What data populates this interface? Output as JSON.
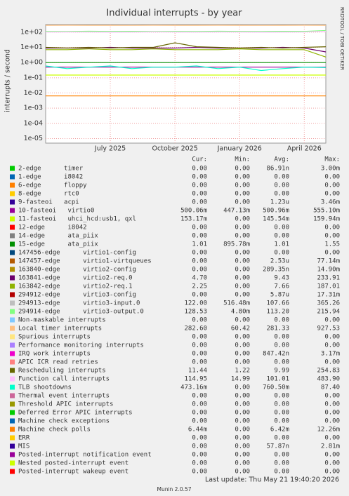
{
  "chart_data": {
    "type": "line",
    "title": "Individual interrupts - by year",
    "y_label": "interrupts / second",
    "side_text": "RRDTOOL / TOBI OETIKER",
    "log_scale": true,
    "grid": true,
    "x": [
      "2025-04",
      "2025-05",
      "2025-06",
      "2025-07",
      "2025-08",
      "2025-09",
      "2025-10",
      "2025-11",
      "2025-12",
      "2026-01",
      "2026-02",
      "2026-03",
      "2026-04",
      "2026-05"
    ],
    "xlim": [
      "2025-04",
      "2026-05"
    ],
    "xticks": [
      {
        "value": "2025-07",
        "label": "July 2025"
      },
      {
        "value": "2025-10",
        "label": "October 2025"
      },
      {
        "value": "2026-01",
        "label": "January 2026"
      },
      {
        "value": "2026-04",
        "label": "April 2026"
      }
    ],
    "ylim": [
      5e-06,
      316
    ],
    "yticks": [
      {
        "value": 1e-05,
        "label": "1e-05"
      },
      {
        "value": 0.0001,
        "label": "1e-04"
      },
      {
        "value": 0.001,
        "label": "1e-03"
      },
      {
        "value": 0.01,
        "label": "1e-02"
      },
      {
        "value": 0.1,
        "label": "1e-01"
      },
      {
        "value": 1,
        "label": "1e+00"
      },
      {
        "value": 10,
        "label": "1e+01"
      },
      {
        "value": 100,
        "label": "1e+02"
      }
    ],
    "headers": [
      "Cur:",
      "Min:",
      "Avg:",
      "Max:"
    ],
    "series": [
      {
        "name": "2-edge      timer",
        "color": "#00cc00",
        "stats": [
          "0.00",
          "0.00",
          "86.91n",
          "3.00m"
        ]
      },
      {
        "name": "1-edge      i8042",
        "color": "#0066b3",
        "stats": [
          "0.00",
          "0.00",
          "0.00",
          "0.00"
        ]
      },
      {
        "name": "6-edge      floppy",
        "color": "#ff8000",
        "stats": [
          "0.00",
          "0.00",
          "0.00",
          "0.00"
        ]
      },
      {
        "name": "8-edge      rtc0",
        "color": "#ffcc00",
        "stats": [
          "0.00",
          "0.00",
          "0.00",
          "0.00"
        ]
      },
      {
        "name": "9-fasteoi   acpi",
        "color": "#330099",
        "stats": [
          "0.00",
          "0.00",
          "1.23u",
          "3.46m"
        ]
      },
      {
        "name": "10-fasteoi   virtio0",
        "color": "#990099",
        "stats": [
          "500.06m",
          "447.13m",
          "500.96m",
          "555.10m"
        ],
        "values": [
          0.5,
          0.5,
          0.5,
          0.5,
          0.5,
          0.5,
          0.5,
          0.5,
          0.5,
          0.5,
          0.5,
          0.5,
          0.5,
          0.5
        ]
      },
      {
        "name": "11-fasteoi   uhci_hcd:usb1, qxl",
        "color": "#ccff00",
        "stats": [
          "153.17m",
          "0.00",
          "145.54m",
          "159.94m"
        ],
        "values": [
          0.15,
          0.15,
          0.15,
          0.15,
          0.15,
          0.15,
          0.15,
          0.15,
          0.15,
          0.15,
          0.15,
          0.15,
          0.15,
          0.15
        ]
      },
      {
        "name": "12-edge      i8042",
        "color": "#ff0000",
        "stats": [
          "0.00",
          "0.00",
          "0.00",
          "0.00"
        ]
      },
      {
        "name": "14-edge      ata_piix",
        "color": "#808080",
        "stats": [
          "0.00",
          "0.00",
          "0.00",
          "0.00"
        ]
      },
      {
        "name": "15-edge      ata_piix",
        "color": "#008f00",
        "stats": [
          "1.01",
          "895.78m",
          "1.01",
          "1.55"
        ],
        "values": [
          1,
          1,
          1,
          1,
          1,
          1,
          1,
          1,
          1,
          1,
          1,
          1,
          1,
          1
        ]
      },
      {
        "name": "147456-edge      virtio1-config",
        "color": "#00487d",
        "stats": [
          "0.00",
          "0.00",
          "0.00",
          "0.00"
        ]
      },
      {
        "name": "147457-edge      virtio1-virtqueues",
        "color": "#b35a00",
        "stats": [
          "0.00",
          "0.00",
          "2.53u",
          "77.14m"
        ]
      },
      {
        "name": "163840-edge      virtio2-config",
        "color": "#b38f00",
        "stats": [
          "0.00",
          "0.00",
          "289.35n",
          "14.90m"
        ]
      },
      {
        "name": "163841-edge      virtio2-req.0",
        "color": "#6b006b",
        "stats": [
          "4.70",
          "0.00",
          "9.43",
          "233.91"
        ],
        "values": [
          9,
          9,
          9,
          10,
          9,
          9,
          9,
          10,
          9,
          9,
          9,
          10,
          9,
          5
        ]
      },
      {
        "name": "163842-edge      virtio2-req.1",
        "color": "#8fb300",
        "stats": [
          "2.25",
          "0.00",
          "7.66",
          "187.01"
        ],
        "values": [
          7,
          7,
          8,
          7,
          7,
          8,
          7,
          7,
          7,
          8,
          7,
          7,
          7,
          2.3
        ]
      },
      {
        "name": "294912-edge      virtio3-config",
        "color": "#b30000",
        "stats": [
          "0.00",
          "0.00",
          "5.87u",
          "17.31m"
        ]
      },
      {
        "name": "294913-edge      virtio3-input.0",
        "color": "#bebebe",
        "stats": [
          "122.00",
          "516.48m",
          "107.66",
          "365.26"
        ],
        "values": [
          105,
          108,
          107,
          106,
          109,
          107,
          108,
          106,
          107,
          108,
          107,
          109,
          107,
          122
        ]
      },
      {
        "name": "294914-edge      virtio3-output.0",
        "color": "#80ff80",
        "stats": [
          "128.53",
          "4.80m",
          "113.20",
          "215.94"
        ],
        "values": [
          110,
          112,
          115,
          113,
          114,
          112,
          113,
          111,
          115,
          113,
          112,
          114,
          113,
          128
        ]
      },
      {
        "name": "Non-maskable interrupts",
        "color": "#80c9ff",
        "stats": [
          "0.00",
          "0.00",
          "0.00",
          "0.00"
        ]
      },
      {
        "name": "Local timer interrupts",
        "color": "#ffc080",
        "stats": [
          "282.60",
          "60.42",
          "281.33",
          "927.53"
        ],
        "values": [
          280,
          285,
          280,
          282,
          279,
          283,
          281,
          280,
          284,
          282,
          279,
          281,
          283,
          282
        ]
      },
      {
        "name": "Spurious interrupts",
        "color": "#ffe680",
        "stats": [
          "0.00",
          "0.00",
          "0.00",
          "0.00"
        ]
      },
      {
        "name": "Performance monitoring interrupts",
        "color": "#aa80ff",
        "stats": [
          "0.00",
          "0.00",
          "0.00",
          "0.00"
        ]
      },
      {
        "name": "IRQ work interrupts",
        "color": "#ee00cc",
        "stats": [
          "0.00",
          "0.00",
          "847.42n",
          "3.17m"
        ]
      },
      {
        "name": "APIC ICR read retries",
        "color": "#ff8080",
        "stats": [
          "0.00",
          "0.00",
          "0.00",
          "0.00"
        ]
      },
      {
        "name": "Rescheduling interrupts",
        "color": "#666600",
        "stats": [
          "11.44",
          "1.22",
          "9.99",
          "254.83"
        ],
        "values": [
          10,
          9,
          10,
          9,
          10,
          10,
          20,
          11,
          10,
          9,
          10,
          9,
          10,
          11
        ]
      },
      {
        "name": "Function call interrupts",
        "color": "#ffbfff",
        "stats": [
          "114.95",
          "14.99",
          "101.01",
          "483.90"
        ],
        "values": [
          100,
          102,
          101,
          99,
          100,
          103,
          101,
          100,
          102,
          101,
          99,
          100,
          101,
          115
        ]
      },
      {
        "name": "TLB shootdowns",
        "color": "#00ffcc",
        "stats": [
          "473.16m",
          "0.00",
          "760.50m",
          "87.40"
        ],
        "values": [
          0.6,
          0.4,
          0.5,
          0.6,
          0.4,
          0.5,
          0.5,
          0.6,
          0.4,
          0.5,
          0.3,
          0.4,
          0.5,
          0.47
        ]
      },
      {
        "name": "Thermal event interrupts",
        "color": "#cc6699",
        "stats": [
          "0.00",
          "0.00",
          "0.00",
          "0.00"
        ]
      },
      {
        "name": "Threshold APIC interrupts",
        "color": "#999900",
        "stats": [
          "0.00",
          "0.00",
          "0.00",
          "0.00"
        ]
      },
      {
        "name": "Deferred Error APIC interrupts",
        "color": "#00cc00",
        "stats": [
          "0.00",
          "0.00",
          "0.00",
          "0.00"
        ]
      },
      {
        "name": "Machine check exceptions",
        "color": "#0066b3",
        "stats": [
          "0.00",
          "0.00",
          "0.00",
          "0.00"
        ]
      },
      {
        "name": "Machine check polls",
        "color": "#ff8000",
        "stats": [
          "6.44m",
          "0.00",
          "6.42m",
          "12.26m"
        ],
        "values": [
          0.0064,
          0.0064,
          0.0064,
          0.0064,
          0.0064,
          0.0064,
          0.0064,
          0.0064,
          0.0064,
          0.0064,
          0.0064,
          0.0064,
          0.0064,
          0.0064
        ]
      },
      {
        "name": "ERR",
        "color": "#ffcc00",
        "stats": [
          "0.00",
          "0.00",
          "0.00",
          "0.00"
        ]
      },
      {
        "name": "MIS",
        "color": "#330099",
        "stats": [
          "0.00",
          "0.00",
          "57.87n",
          "2.81m"
        ]
      },
      {
        "name": "Posted-interrupt notification event",
        "color": "#990099",
        "stats": [
          "0.00",
          "0.00",
          "0.00",
          "0.00"
        ]
      },
      {
        "name": "Nested posted-interrupt event",
        "color": "#ccff00",
        "stats": [
          "0.00",
          "0.00",
          "0.00",
          "0.00"
        ]
      },
      {
        "name": "Posted-interrupt wakeup event",
        "color": "#ff0000",
        "stats": [
          "0.00",
          "0.00",
          "0.00",
          "0.00"
        ]
      }
    ]
  },
  "footer": {
    "last_update": "Last update: Thu May 21 19:40:20 2026",
    "version": "Munin 2.0.57"
  }
}
